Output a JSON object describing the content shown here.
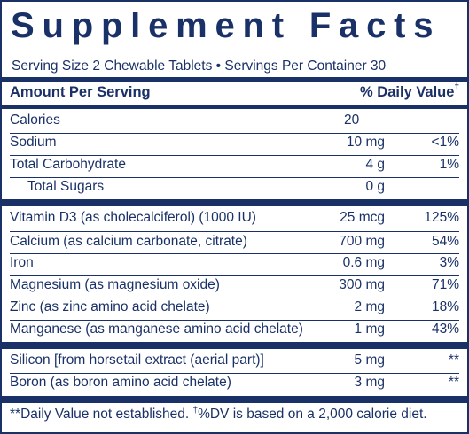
{
  "title": "Supplement Facts",
  "serving_line": "Serving Size 2 Chewable Tablets • Servings Per Container 30",
  "header": {
    "amount_label": "Amount Per Serving",
    "dv_label": "% Daily Value",
    "dv_mark": "†"
  },
  "rows": [
    {
      "name": "Calories",
      "amount": "20",
      "dv": ""
    },
    {
      "name": "Sodium",
      "amount": "10 mg",
      "dv": "<1%"
    },
    {
      "name": "Total Carbohydrate",
      "amount": "4 g",
      "dv": "1%"
    },
    {
      "name": "Total Sugars",
      "amount": "0 g",
      "dv": ""
    },
    {
      "name": "Vitamin D3 (as cholecalciferol) (1000 IU)",
      "amount": "25 mcg",
      "dv": "125%"
    },
    {
      "name": "Calcium (as calcium carbonate, citrate)",
      "amount": "700 mg",
      "dv": "54%"
    },
    {
      "name": "Iron",
      "amount": "0.6 mg",
      "dv": "3%"
    },
    {
      "name": "Magnesium (as magnesium oxide)",
      "amount": "300 mg",
      "dv": "71%"
    },
    {
      "name": "Zinc (as zinc amino acid chelate)",
      "amount": "2 mg",
      "dv": "18%"
    },
    {
      "name": "Manganese (as manganese amino acid chelate)",
      "amount": "1 mg",
      "dv": "43%"
    },
    {
      "name": "Silicon [from horsetail extract (aerial part)]",
      "amount": "5 mg",
      "dv": "**"
    },
    {
      "name": "Boron (as boron amino acid chelate)",
      "amount": "3 mg",
      "dv": "**"
    }
  ],
  "footnote": {
    "part1": "**Daily Value not established. ",
    "mark": "†",
    "part2": "%DV is based on a 2,000 calorie diet."
  },
  "colors": {
    "ink": "#1a3168",
    "background": "#ffffff"
  }
}
